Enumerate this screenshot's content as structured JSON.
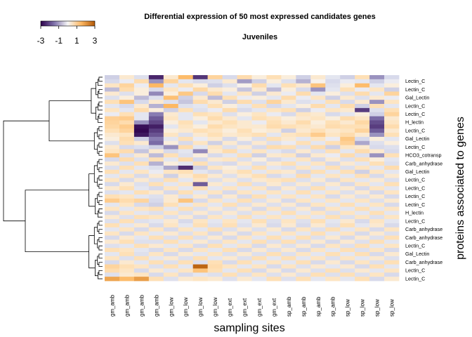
{
  "chart_data": {
    "type": "heatmap",
    "title": "Differential expression of 50 most expressed candidates genes",
    "subtitle": "Juveniles",
    "xlabel": "sampling sites",
    "ylabel": "proteins associated to genes",
    "columns": [
      "gm_amb",
      "gm_amb",
      "gm_amb",
      "gm_amb",
      "gm_low",
      "gm_low",
      "gm_low",
      "gm_low",
      "gm_ext",
      "gm_ext",
      "gm_ext",
      "gm_ext",
      "sp_amb",
      "sp_amb",
      "sp_amb",
      "sp_amb",
      "sp_low",
      "sp_low",
      "sp_low",
      "sp_low"
    ],
    "row_labels_visible": [
      "Lectin_C",
      "Lectin_C",
      "Gal_Lectin",
      "Lectin_C",
      "Lectin_C",
      "H_lectin",
      "Lectin_C",
      "Gal_Lectin",
      "Lectin_C",
      "HCO3_cotransp",
      "Carb_anhydrase",
      "Gal_Lectin",
      "Lectin_C",
      "Lectin_C",
      "Lectin_C",
      "Lectin_C",
      "H_lectin",
      "Lectin_C",
      "Carb_anhydrase",
      "Carb_anhydrase",
      "Lectin_C",
      "Gal_Lectin",
      "Carb_anhydrase",
      "Lectin_C",
      "Lectin_C"
    ],
    "color_key": {
      "ticks": [
        "-3",
        "-1",
        "1",
        "3"
      ],
      "range": [
        -3,
        3
      ],
      "low_color": "#2d004b",
      "mid_color": "#f7f7f7",
      "high_color": "#b35806"
    },
    "values": [
      [
        -0.6,
        0.3,
        -0.4,
        -2.5,
        0.3,
        1.4,
        -2.3,
        0.8,
        -0.5,
        0.6,
        0.2,
        0.5,
        0.2,
        -0.6,
        0.3,
        -0.3,
        -0.6,
        0.5,
        -1.2,
        -0.5
      ],
      [
        -0.5,
        -0.2,
        0.6,
        -1.2,
        0.8,
        -0.3,
        -0.5,
        -0.4,
        0.3,
        -1.1,
        -0.6,
        0.2,
        -0.4,
        -0.9,
        0.1,
        -0.5,
        -0.2,
        -0.3,
        -0.6,
        -0.2
      ],
      [
        0.4,
        0.8,
        -0.2,
        1.5,
        -0.3,
        0.5,
        0.2,
        -0.6,
        -0.4,
        0.1,
        0.6,
        -0.3,
        0.5,
        0.3,
        1.2,
        -0.4,
        0.2,
        1.4,
        -0.3,
        0.2
      ],
      [
        -0.8,
        0.6,
        0.2,
        -0.5,
        0.4,
        -0.2,
        0.7,
        0.3,
        0.2,
        -0.7,
        0.3,
        -0.8,
        0.2,
        -0.5,
        -1.2,
        -0.3,
        0.5,
        -0.2,
        0.4,
        -0.6
      ],
      [
        0.3,
        -0.4,
        0.2,
        -1.3,
        0.2,
        1.1,
        -0.5,
        0.6,
        -0.3,
        0.4,
        -0.6,
        0.3,
        -0.2,
        0.6,
        -0.3,
        0.2,
        -0.4,
        0.6,
        -0.3,
        0.8
      ],
      [
        -0.4,
        0.2,
        -0.8,
        -0.4,
        1.3,
        -0.6,
        0.3,
        -0.8,
        0.5,
        -0.2,
        0.2,
        -0.3,
        0.6,
        -0.2,
        0.4,
        -0.6,
        0.3,
        -0.4,
        0.3,
        -0.2
      ],
      [
        0.5,
        1.2,
        -0.5,
        0.3,
        -0.4,
        -0.7,
        0.6,
        0.3,
        -0.6,
        0.6,
        -0.4,
        0.8,
        0.3,
        -0.4,
        -0.3,
        0.5,
        -0.5,
        0.3,
        -1.2,
        0.4
      ],
      [
        -0.3,
        -0.5,
        0.3,
        -0.9,
        1.5,
        -0.4,
        -0.3,
        0.5,
        0.2,
        -0.3,
        0.5,
        -0.5,
        -0.3,
        0.2,
        0.6,
        -0.3,
        0.6,
        -0.6,
        0.5,
        -0.3
      ],
      [
        0.4,
        -0.3,
        0.6,
        0.2,
        -0.6,
        0.5,
        -0.4,
        -0.2,
        0.6,
        -0.5,
        -0.3,
        0.4,
        0.5,
        -0.6,
        -0.2,
        0.4,
        0.3,
        -2.2,
        -0.4,
        0.5
      ],
      [
        -0.2,
        0.5,
        -0.3,
        -1.4,
        0.3,
        -0.3,
        0.5,
        0.4,
        -0.4,
        0.2,
        0.4,
        -0.2,
        -0.5,
        0.4,
        0.3,
        -0.5,
        -0.3,
        0.2,
        -0.6,
        0.8
      ],
      [
        0.9,
        1.0,
        -0.3,
        -1.8,
        0.4,
        -0.3,
        0.2,
        0.6,
        0.3,
        -0.3,
        0.5,
        0.4,
        0.2,
        0.3,
        0.4,
        0.2,
        0.6,
        0.4,
        -1.6,
        0.3
      ],
      [
        0.8,
        0.6,
        -1.2,
        -2.1,
        0.2,
        0.5,
        -0.3,
        0.3,
        0.5,
        0.3,
        -0.2,
        0.5,
        0.3,
        0.6,
        0.2,
        0.5,
        0.3,
        0.7,
        -2.0,
        0.4
      ],
      [
        0.7,
        1.0,
        -2.8,
        -2.6,
        -0.3,
        0.4,
        0.2,
        0.6,
        0.4,
        0.3,
        0.3,
        0.6,
        0.5,
        0.4,
        0.3,
        0.6,
        0.5,
        0.5,
        -2.2,
        0.6
      ],
      [
        0.5,
        0.8,
        -2.9,
        -2.2,
        0.2,
        0.3,
        0.5,
        0.4,
        0.2,
        0.5,
        0.2,
        0.3,
        -0.6,
        0.3,
        0.5,
        0.3,
        0.4,
        0.8,
        -1.8,
        0.3
      ],
      [
        0.3,
        0.4,
        -2.7,
        -1.9,
        0.4,
        -0.4,
        0.3,
        0.5,
        0.3,
        0.4,
        0.5,
        -0.3,
        0.4,
        0.5,
        1.0,
        0.4,
        0.6,
        0.3,
        -1.2,
        0.5
      ],
      [
        0.2,
        0.6,
        -0.6,
        -1.4,
        -0.3,
        0.5,
        -0.2,
        0.3,
        -0.5,
        0.2,
        -0.4,
        0.5,
        0.3,
        -0.3,
        0.4,
        -0.2,
        1.1,
        -0.5,
        0.2,
        -0.3
      ],
      [
        -0.4,
        0.5,
        0.3,
        -1.6,
        0.2,
        -0.5,
        0.4,
        -0.6,
        0.3,
        -0.5,
        0.3,
        -0.4,
        -0.2,
        0.5,
        -0.3,
        0.5,
        0.9,
        -1.0,
        -0.4,
        0.2
      ],
      [
        0.3,
        -0.5,
        -0.4,
        -0.6,
        -1.2,
        0.6,
        -0.3,
        0.4,
        -0.4,
        0.3,
        -0.5,
        0.6,
        0.5,
        -0.4,
        0.6,
        -0.6,
        0.4,
        0.3,
        -0.5,
        -0.4
      ],
      [
        0.4,
        0.6,
        -0.7,
        0.3,
        -0.5,
        -0.3,
        -1.3,
        0.3,
        0.6,
        -0.3,
        0.4,
        -0.3,
        -0.5,
        0.3,
        -0.4,
        0.5,
        -0.3,
        0.6,
        0.3,
        -0.5
      ],
      [
        1.2,
        -0.4,
        0.3,
        -0.8,
        0.5,
        -0.4,
        0.2,
        -0.5,
        -0.3,
        0.5,
        -0.6,
        0.3,
        0.4,
        -0.6,
        0.3,
        -0.2,
        0.6,
        -0.4,
        -1.2,
        0.5
      ],
      [
        -0.5,
        0.6,
        -0.4,
        0.5,
        -0.3,
        0.6,
        -0.5,
        0.3,
        0.4,
        -0.4,
        0.2,
        -0.5,
        -0.3,
        0.4,
        -0.5,
        0.3,
        -0.4,
        0.5,
        0.2,
        -0.3
      ],
      [
        0.3,
        -0.4,
        0.5,
        -0.9,
        0.2,
        -0.3,
        0.5,
        -0.4,
        -0.5,
        0.3,
        -0.4,
        0.3,
        0.5,
        -0.3,
        0.4,
        -0.5,
        0.3,
        -0.3,
        0.5,
        -0.4
      ],
      [
        -0.4,
        0.5,
        -0.3,
        -0.4,
        -1.0,
        -2.4,
        -0.6,
        0.4,
        0.2,
        -0.3,
        0.5,
        -0.3,
        -0.4,
        0.4,
        -0.3,
        0.5,
        -0.4,
        0.4,
        -0.3,
        0.6
      ],
      [
        0.5,
        -0.3,
        0.4,
        -0.2,
        0.4,
        0.5,
        -0.3,
        -0.5,
        0.3,
        0.5,
        -0.3,
        0.4,
        0.3,
        -0.5,
        0.5,
        -0.3,
        0.5,
        -0.6,
        0.4,
        -0.3
      ],
      [
        -0.3,
        0.4,
        -0.5,
        0.3,
        -0.6,
        0.3,
        0.6,
        0.3,
        -0.4,
        0.3,
        0.5,
        -0.5,
        -0.3,
        0.6,
        -0.3,
        0.4,
        -0.3,
        0.5,
        -0.5,
        0.3
      ],
      [
        0.4,
        -0.5,
        0.3,
        -0.4,
        0.5,
        -0.3,
        0.4,
        -0.4,
        0.3,
        -0.4,
        0.3,
        0.4,
        0.5,
        -0.4,
        0.3,
        -0.5,
        0.4,
        -0.3,
        0.3,
        -0.4
      ],
      [
        -0.5,
        0.3,
        -0.4,
        0.5,
        -0.3,
        0.4,
        -1.8,
        0.3,
        -0.3,
        0.5,
        -0.4,
        0.3,
        -0.4,
        0.3,
        -0.4,
        0.3,
        -0.5,
        0.4,
        -0.3,
        0.5
      ],
      [
        0.3,
        0.5,
        -0.3,
        -0.5,
        0.4,
        -0.3,
        0.5,
        -0.3,
        0.4,
        -0.3,
        0.4,
        -0.5,
        0.3,
        -0.4,
        0.5,
        -0.3,
        0.3,
        -0.5,
        0.4,
        -0.3
      ],
      [
        -0.4,
        -0.3,
        0.5,
        0.3,
        -0.5,
        0.5,
        -0.3,
        0.4,
        -0.5,
        0.4,
        -0.3,
        0.4,
        -0.3,
        0.5,
        -0.3,
        0.4,
        -0.4,
        0.3,
        -0.5,
        0.4
      ],
      [
        0.5,
        0.4,
        -0.3,
        -0.4,
        0.3,
        -0.4,
        0.3,
        -0.5,
        0.3,
        -0.5,
        0.5,
        -0.3,
        0.4,
        -0.3,
        0.4,
        -0.5,
        0.3,
        -0.4,
        0.3,
        -0.5
      ],
      [
        1.0,
        0.6,
        0.8,
        -0.5,
        0.3,
        1.2,
        -0.5,
        0.4,
        -0.3,
        0.5,
        -0.4,
        0.3,
        -0.5,
        0.4,
        -0.3,
        0.4,
        -0.3,
        0.4,
        -0.4,
        0.3
      ],
      [
        -0.3,
        0.4,
        -0.5,
        -0.6,
        0.5,
        -0.3,
        0.4,
        -0.3,
        0.5,
        -0.4,
        0.3,
        -0.4,
        0.3,
        -0.5,
        0.4,
        -0.3,
        0.5,
        -0.3,
        0.4,
        -0.5
      ],
      [
        0.4,
        -0.3,
        0.4,
        0.5,
        -0.3,
        0.5,
        -0.4,
        0.3,
        -0.4,
        0.3,
        -0.5,
        0.4,
        -0.4,
        0.3,
        -0.5,
        0.4,
        -0.3,
        0.5,
        -0.3,
        0.4
      ],
      [
        -0.5,
        0.4,
        -0.3,
        -0.4,
        0.4,
        -0.4,
        0.3,
        -0.4,
        0.3,
        -0.4,
        0.4,
        -0.3,
        0.5,
        -0.3,
        0.4,
        -0.4,
        0.4,
        -0.3,
        0.5,
        -0.3
      ],
      [
        0.3,
        -0.4,
        0.5,
        0.4,
        -0.4,
        0.3,
        -0.5,
        0.4,
        -0.3,
        0.5,
        -0.3,
        0.4,
        -0.3,
        0.4,
        -0.3,
        0.5,
        -0.4,
        0.4,
        -0.4,
        0.4
      ],
      [
        -0.4,
        0.5,
        -0.4,
        -0.3,
        0.3,
        -0.5,
        0.4,
        -0.3,
        0.4,
        -0.3,
        0.5,
        -0.4,
        0.4,
        -0.4,
        0.5,
        -0.3,
        0.3,
        -0.5,
        0.4,
        -0.3
      ],
      [
        0.5,
        -0.3,
        0.3,
        -0.5,
        0.4,
        -0.3,
        0.5,
        -0.4,
        0.5,
        -0.4,
        0.3,
        -0.5,
        0.3,
        -0.5,
        0.3,
        -0.4,
        0.5,
        -0.3,
        0.3,
        -0.5
      ],
      [
        -0.3,
        0.4,
        -0.5,
        0.4,
        -0.5,
        0.4,
        -0.3,
        0.5,
        -0.4,
        0.3,
        -0.4,
        0.3,
        -0.5,
        0.4,
        -0.4,
        0.5,
        -0.3,
        0.4,
        -0.5,
        0.4
      ],
      [
        0.4,
        -0.5,
        0.4,
        -0.3,
        0.3,
        -0.4,
        0.4,
        -0.5,
        0.3,
        -0.5,
        0.4,
        -0.3,
        0.4,
        -0.3,
        0.5,
        -0.3,
        0.4,
        -0.5,
        0.3,
        -0.4
      ],
      [
        -0.5,
        0.3,
        -0.3,
        0.5,
        -0.4,
        0.5,
        -0.4,
        0.3,
        -0.5,
        0.4,
        -0.3,
        0.5,
        -0.3,
        0.5,
        -0.4,
        0.3,
        -0.5,
        0.3,
        -0.4,
        0.5
      ],
      [
        0.3,
        0.5,
        -0.4,
        -0.4,
        0.5,
        -0.3,
        0.3,
        -0.4,
        0.4,
        -0.3,
        0.5,
        -0.4,
        0.5,
        -0.4,
        0.3,
        -0.5,
        0.3,
        -0.4,
        0.5,
        -0.3
      ],
      [
        -0.4,
        -0.3,
        0.5,
        0.3,
        -0.3,
        0.4,
        -0.5,
        0.5,
        -0.3,
        0.4,
        -0.5,
        0.3,
        -0.4,
        0.3,
        -0.5,
        0.4,
        -0.4,
        0.5,
        -0.3,
        0.4
      ],
      [
        0.5,
        0.4,
        -0.3,
        -0.5,
        0.4,
        -0.5,
        0.4,
        -0.3,
        0.5,
        -0.5,
        0.3,
        -0.4,
        0.3,
        -0.5,
        0.4,
        -0.3,
        0.5,
        -0.4,
        0.4,
        -0.5
      ],
      [
        -0.3,
        0.5,
        -0.4,
        0.4,
        -0.5,
        0.3,
        -0.3,
        0.4,
        -0.4,
        0.3,
        -0.4,
        0.5,
        -0.4,
        0.4,
        -0.3,
        0.5,
        -0.3,
        0.5,
        -0.5,
        0.3
      ],
      [
        0.4,
        -0.4,
        0.5,
        -0.3,
        0.3,
        -0.4,
        0.5,
        -0.3,
        0.3,
        -0.4,
        0.5,
        -0.3,
        0.5,
        -0.3,
        0.4,
        -0.4,
        0.4,
        -0.3,
        0.3,
        -0.4
      ],
      [
        -0.5,
        0.3,
        -0.3,
        0.5,
        -0.4,
        0.5,
        -0.4,
        0.5,
        -0.5,
        0.5,
        -0.3,
        0.4,
        -0.3,
        0.5,
        -0.5,
        0.3,
        -0.5,
        0.4,
        -0.4,
        0.5
      ],
      [
        0.8,
        0.5,
        0.4,
        -0.4,
        0.5,
        -0.3,
        2.8,
        0.6,
        0.4,
        -0.3,
        0.4,
        -0.5,
        0.4,
        -0.4,
        0.3,
        -0.3,
        0.3,
        -0.5,
        0.5,
        -0.3
      ],
      [
        0.6,
        0.4,
        -0.5,
        0.3,
        -0.3,
        0.4,
        1.2,
        0.5,
        -0.3,
        0.5,
        -0.5,
        0.3,
        -0.5,
        0.3,
        -0.4,
        0.5,
        -0.4,
        0.3,
        -0.3,
        0.4
      ],
      [
        -0.4,
        0.3,
        0.4,
        -0.5,
        0.4,
        -0.5,
        -0.3,
        -0.4,
        0.5,
        -0.4,
        0.4,
        -0.4,
        0.3,
        -0.4,
        0.5,
        -0.4,
        0.5,
        -0.4,
        0.4,
        -0.5
      ],
      [
        1.8,
        1.4,
        1.9,
        0.5,
        -0.4,
        0.3,
        0.4,
        0.3,
        -0.4,
        0.3,
        -0.3,
        0.5,
        -0.4,
        0.5,
        -0.3,
        0.4,
        -0.3,
        0.5,
        -0.5,
        0.3
      ]
    ]
  }
}
